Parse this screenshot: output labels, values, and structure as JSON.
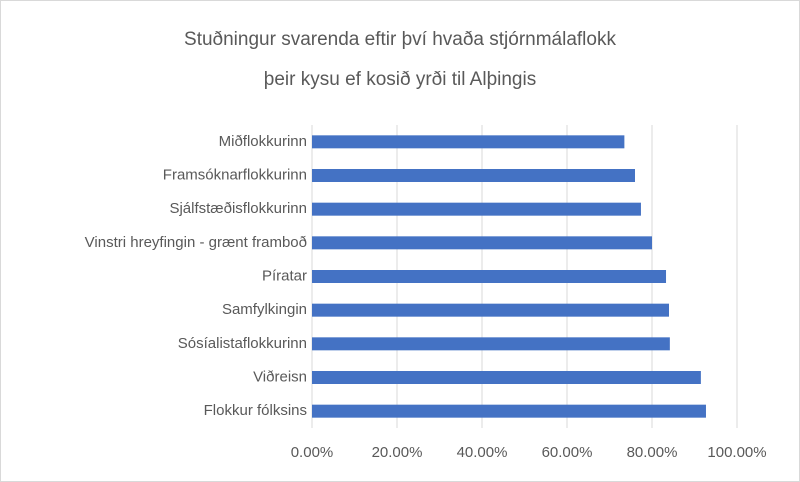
{
  "chart_data": {
    "type": "bar",
    "orientation": "horizontal",
    "title": [
      "Stuðningur svarenda eftir því hvaða stjórnmálaflokk",
      "þeir kysu ef kosið yrði til Alþingis"
    ],
    "categories": [
      "Miðflokkurinn",
      "Framsóknarflokkurinn",
      "Sjálfstæðisflokkurinn",
      "Vinstri hreyfingin - grænt framboð",
      "Píratar",
      "Samfylkingin",
      "Sósíalistaflokkurinn",
      "Viðreisn",
      "Flokkur fólksins"
    ],
    "values": [
      73.5,
      76,
      77.4,
      80,
      83.3,
      84,
      84.2,
      91.5,
      92.7
    ],
    "color": "#4472c4",
    "xlim": [
      0,
      100
    ],
    "xticks": [
      {
        "value": 0,
        "label": "0.00%"
      },
      {
        "value": 20,
        "label": "20.00%"
      },
      {
        "value": 40,
        "label": "40.00%"
      },
      {
        "value": 60,
        "label": "60.00%"
      },
      {
        "value": 80,
        "label": "80.00%"
      },
      {
        "value": 100,
        "label": "100.00%"
      }
    ],
    "grid": true
  }
}
